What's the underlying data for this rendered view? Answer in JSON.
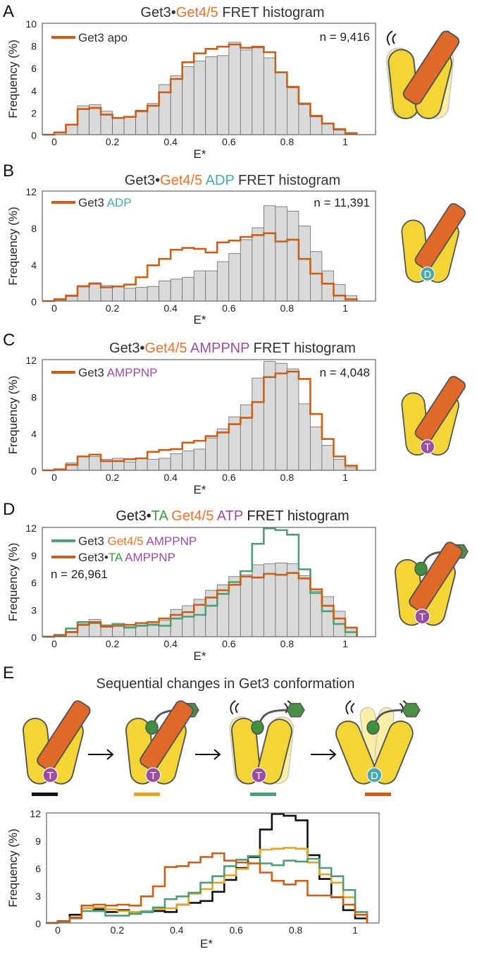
{
  "colors": {
    "orange_line": "#c8601a",
    "bar_fill": "#d9dbdb",
    "bar_stroke": "#6a6a6a",
    "green_line": "#4e9e78",
    "yellow_line": "#e2a52a",
    "black_line": "#111111",
    "get45": "#e8742c",
    "adp": "#4aa9a9",
    "amppnp": "#9b4ea0",
    "ta": "#3c9a3c",
    "get3_yellow": "#f3d535"
  },
  "chart_data": [
    {
      "type": "histogram",
      "panel": "A",
      "title_segments": [
        {
          "text": "Get3•",
          "color": "#333333"
        },
        {
          "text": "Get4/5",
          "color": "#e8742c"
        },
        {
          "text": " FRET histogram",
          "color": "#333333"
        }
      ],
      "xlabel": "E*",
      "ylabel": "Frequency (%)",
      "xlim": [
        -0.04,
        1.1
      ],
      "ylim": [
        0,
        10
      ],
      "xticks": [
        "0",
        "0.2",
        "0.4",
        "0.6",
        "0.8",
        "1"
      ],
      "yticks": [
        "0",
        "2",
        "4",
        "6",
        "8",
        "10"
      ],
      "bin_start": -0.04,
      "bin_width": 0.04,
      "n_label": "n = 9,416",
      "bars": [
        0,
        0.2,
        0.9,
        2.6,
        2.7,
        2.1,
        1.5,
        1.6,
        2.2,
        2.8,
        4.5,
        5.3,
        6.1,
        6.6,
        7.0,
        7.1,
        8.3,
        7.6,
        7.8,
        6.9,
        5.6,
        4.2,
        2.7,
        1.6,
        1.0,
        0.4,
        0.2
      ],
      "series": [
        {
          "color": "#c8601a",
          "legend": [
            {
              "text": "Get3 apo",
              "color": "#333333"
            }
          ],
          "values": [
            0,
            0.2,
            0.9,
            2.3,
            2.4,
            1.8,
            1.5,
            1.6,
            2.1,
            2.6,
            3.8,
            5.0,
            6.5,
            7.3,
            7.7,
            7.9,
            8.1,
            7.8,
            7.9,
            7.4,
            5.6,
            4.3,
            2.8,
            1.7,
            1.0,
            0.5,
            0.1
          ]
        }
      ]
    },
    {
      "type": "histogram",
      "panel": "B",
      "title_segments": [
        {
          "text": "Get3•",
          "color": "#333333"
        },
        {
          "text": "Get4/5",
          "color": "#e8742c"
        },
        {
          "text": " ADP",
          "color": "#4aa9a9"
        },
        {
          "text": " FRET histogram",
          "color": "#333333"
        }
      ],
      "xlabel": "E*",
      "ylabel": "Frequency (%)",
      "xlim": [
        -0.04,
        1.1
      ],
      "ylim": [
        0,
        12
      ],
      "xticks": [
        "0",
        "0.2",
        "0.4",
        "0.6",
        "0.8",
        "1"
      ],
      "yticks": [
        "0",
        "4",
        "8",
        "12"
      ],
      "bin_start": -0.04,
      "bin_width": 0.04,
      "n_label": "n = 11,391",
      "bars": [
        0,
        0.1,
        0.5,
        1.7,
        2.0,
        1.7,
        1.6,
        1.4,
        1.5,
        1.6,
        2.2,
        2.4,
        2.6,
        3.3,
        3.3,
        4.3,
        5.2,
        6.7,
        8.0,
        10.4,
        10.3,
        9.8,
        8.2,
        5.4,
        3.3,
        1.8,
        0.6
      ],
      "series": [
        {
          "color": "#c8601a",
          "legend": [
            {
              "text": "Get3 ",
              "color": "#333333"
            },
            {
              "text": "ADP",
              "color": "#4aa9a9"
            }
          ],
          "values": [
            0,
            0.2,
            0.6,
            1.6,
            1.9,
            1.5,
            1.6,
            1.8,
            2.6,
            3.9,
            4.6,
            5.6,
            5.8,
            5.7,
            5.3,
            6.4,
            6.6,
            7.0,
            7.2,
            7.4,
            6.5,
            6.7,
            4.6,
            3.0,
            1.9,
            0.6,
            0.2
          ]
        }
      ]
    },
    {
      "type": "histogram",
      "panel": "C",
      "title_segments": [
        {
          "text": "Get3•",
          "color": "#333333"
        },
        {
          "text": "Get4/5",
          "color": "#e8742c"
        },
        {
          "text": " AMPPNP",
          "color": "#9b4ea0"
        },
        {
          "text": " FRET histogram",
          "color": "#333333"
        }
      ],
      "xlabel": "E*",
      "ylabel": "Frequency (%)",
      "xlim": [
        -0.04,
        1.1
      ],
      "ylim": [
        0,
        12
      ],
      "xticks": [
        "0",
        "0.2",
        "0.4",
        "0.6",
        "0.8",
        "1"
      ],
      "yticks": [
        "0",
        "4",
        "8",
        "12"
      ],
      "bin_start": -0.04,
      "bin_width": 0.04,
      "n_label": "n = 4,048",
      "bars": [
        0,
        0.1,
        0.8,
        1.5,
        1.5,
        1.2,
        1.3,
        0.9,
        1.3,
        1.2,
        1.3,
        1.8,
        2.1,
        2.3,
        3.5,
        4.5,
        5.8,
        7.1,
        10.0,
        11.8,
        11.6,
        11.0,
        7.2,
        4.7,
        2.7,
        1.2,
        0.3
      ],
      "series": [
        {
          "color": "#c8601a",
          "legend": [
            {
              "text": "Get3 ",
              "color": "#333333"
            },
            {
              "text": "AMPPNP",
              "color": "#9b4ea0"
            }
          ],
          "values": [
            0,
            0.1,
            0.6,
            1.5,
            1.7,
            1.0,
            1.0,
            1.2,
            1.3,
            2.0,
            2.2,
            2.3,
            3.0,
            3.2,
            3.7,
            4.1,
            5.0,
            5.7,
            7.4,
            10.1,
            10.5,
            10.7,
            9.9,
            6.1,
            3.4,
            1.5,
            0.5
          ]
        }
      ]
    },
    {
      "type": "histogram",
      "panel": "D",
      "title_segments": [
        {
          "text": "Get3•",
          "color": "#222222"
        },
        {
          "text": "TA",
          "color": "#3c9a3c"
        },
        {
          "text": " Get4/5",
          "color": "#e8742c"
        },
        {
          "text": " ATP",
          "color": "#9b4ea0"
        },
        {
          "text": " FRET histogram",
          "color": "#222222"
        }
      ],
      "xlabel": "E*",
      "ylabel": "Frequency (%)",
      "xlim": [
        -0.04,
        1.1
      ],
      "ylim": [
        0,
        12
      ],
      "xticks": [
        "0",
        "0.2",
        "0.4",
        "0.6",
        "0.8",
        "1"
      ],
      "yticks": [
        "0",
        "3",
        "6",
        "9",
        "12"
      ],
      "bin_start": -0.04,
      "bin_width": 0.04,
      "n_label": "n = 26,961",
      "bars": [
        0,
        0.1,
        0.6,
        1.4,
        1.9,
        1.3,
        1.2,
        1.1,
        1.3,
        1.4,
        1.8,
        3.0,
        3.4,
        4.1,
        5.1,
        5.7,
        6.6,
        6.8,
        7.9,
        8.0,
        8.1,
        8.0,
        6.7,
        5.0,
        4.4,
        2.8,
        1.0
      ],
      "series": [
        {
          "color": "#4e9e78",
          "legend": [
            {
              "text": "Get3 ",
              "color": "#333333"
            },
            {
              "text": "Get4/5 ",
              "color": "#e8742c"
            },
            {
              "text": "AMPPNP",
              "color": "#9b4ea0"
            }
          ],
          "values": [
            0,
            0.2,
            0.9,
            1.6,
            1.5,
            1.2,
            1.4,
            1.0,
            1.2,
            1.3,
            1.2,
            2.0,
            2.2,
            2.4,
            3.4,
            4.7,
            6.0,
            7.2,
            10.2,
            11.9,
            11.7,
            11.2,
            7.4,
            4.8,
            2.8,
            1.4,
            0.5
          ]
        },
        {
          "color": "#c8601a",
          "legend": [
            {
              "text": "Get3•",
              "color": "#333333"
            },
            {
              "text": "TA",
              "color": "#3c9a3c"
            },
            {
              "text": " AMPPNP",
              "color": "#9b4ea0"
            }
          ],
          "values": [
            0,
            0.1,
            0.5,
            1.3,
            1.6,
            1.1,
            1.2,
            1.3,
            1.5,
            1.6,
            2.0,
            2.4,
            2.7,
            3.5,
            4.3,
            5.1,
            5.7,
            6.6,
            6.5,
            6.9,
            6.8,
            7.0,
            6.4,
            5.2,
            3.4,
            2.0,
            1.0
          ]
        }
      ]
    },
    {
      "type": "histogram",
      "panel": "E",
      "title_segments": [
        {
          "text": "Sequential changes in Get3 conformation",
          "color": "#333333"
        }
      ],
      "xlabel": "E*",
      "ylabel": "Frequency (%)",
      "xlim": [
        -0.04,
        1.1
      ],
      "ylim": [
        0,
        12
      ],
      "xticks": [
        "0",
        "0.2",
        "0.4",
        "0.6",
        "0.8",
        "1"
      ],
      "yticks": [
        "0",
        "3",
        "6",
        "9",
        "12"
      ],
      "bin_start": -0.04,
      "bin_width": 0.04,
      "bars": null,
      "series": [
        {
          "color": "#111111",
          "values": [
            0,
            0.2,
            0.9,
            1.6,
            1.5,
            1.2,
            1.4,
            1.0,
            1.2,
            1.3,
            1.2,
            2.0,
            2.2,
            2.4,
            3.4,
            4.7,
            6.0,
            7.2,
            10.2,
            11.9,
            11.7,
            11.2,
            7.4,
            4.8,
            2.8,
            1.4,
            0.5
          ]
        },
        {
          "color": "#e2a52a",
          "values": [
            0,
            0.1,
            0.5,
            1.6,
            1.7,
            1.5,
            1.3,
            1.2,
            1.3,
            1.5,
            1.6,
            2.0,
            3.2,
            3.7,
            4.4,
            5.2,
            5.9,
            6.5,
            8.0,
            8.1,
            8.2,
            8.1,
            6.6,
            5.3,
            4.4,
            2.8,
            1.2
          ]
        },
        {
          "color": "#4e9e78",
          "values": [
            0,
            0.1,
            0.5,
            1.3,
            1.3,
            0.8,
            0.8,
            1.0,
            1.2,
            1.7,
            2.6,
            2.9,
            3.3,
            4.4,
            5.1,
            6.2,
            6.9,
            7.3,
            6.5,
            6.3,
            6.8,
            6.7,
            7.0,
            6.0,
            5.1,
            3.6,
            1.2
          ]
        },
        {
          "color": "#c8601a",
          "values": [
            0,
            0.2,
            0.6,
            1.9,
            2.0,
            1.9,
            2.0,
            1.9,
            2.9,
            4.0,
            6.1,
            6.2,
            6.6,
            7.2,
            7.6,
            6.8,
            6.6,
            6.5,
            5.5,
            4.6,
            4.2,
            4.6,
            3.0,
            3.0,
            2.8,
            2.0,
            0.9
          ]
        }
      ]
    }
  ],
  "cartoons": {
    "A": {
      "get45": true,
      "ta": false,
      "flex": true,
      "badge": null
    },
    "B": {
      "get45": true,
      "ta": false,
      "flex": false,
      "badge": "D",
      "badge_color": "#49a8a8"
    },
    "C": {
      "get45": true,
      "ta": false,
      "flex": false,
      "badge": "T",
      "badge_color": "#9b4ea0"
    },
    "D": {
      "get45": true,
      "ta": true,
      "flex": false,
      "badge": "T",
      "badge_color": "#9b4ea0"
    },
    "E_states": [
      {
        "get45": true,
        "ta": false,
        "flex": false,
        "badge": "T",
        "badge_color": "#9b4ea0",
        "bar_color": "#111111"
      },
      {
        "get45": true,
        "ta": true,
        "flex": false,
        "badge": "T",
        "badge_color": "#9b4ea0",
        "bar_color": "#e2a52a"
      },
      {
        "get45": false,
        "ta": true,
        "flex": true,
        "badge": "T",
        "badge_color": "#9b4ea0",
        "bar_color": "#4e9e78"
      },
      {
        "get45": false,
        "ta": true,
        "flex": true,
        "open": true,
        "badge": "D",
        "badge_color": "#49a8a8",
        "bar_color": "#c8601a"
      }
    ]
  }
}
